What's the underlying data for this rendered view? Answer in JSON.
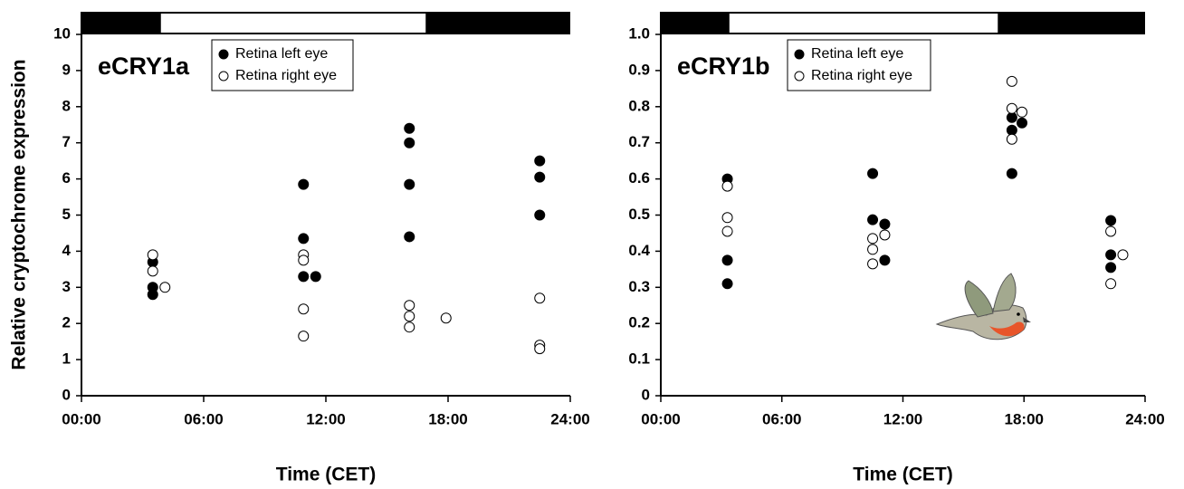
{
  "chart_data": [
    {
      "type": "scatter",
      "title": "eCRY1a",
      "xlabel": "Time (CET)",
      "ylabel": "Relative cryptochrome expression",
      "xlim": [
        0,
        24
      ],
      "xticks": [
        {
          "value": 0,
          "label": "00:00"
        },
        {
          "value": 6,
          "label": "06:00"
        },
        {
          "value": 12,
          "label": "12:00"
        },
        {
          "value": 18,
          "label": "18:00"
        },
        {
          "value": 24,
          "label": "24:00"
        }
      ],
      "ylim": [
        0,
        10
      ],
      "yticks": [
        0,
        1,
        2,
        3,
        4,
        5,
        6,
        7,
        8,
        9,
        10
      ],
      "light_phase": [
        3.9,
        16.9
      ],
      "series": [
        {
          "name": "Retina left eye",
          "color": "#000000",
          "marker": "filled",
          "x": [
            3.5,
            3.5,
            3.5,
            10.9,
            10.9,
            10.9,
            11.5,
            16.1,
            16.1,
            16.1,
            16.1,
            22.5,
            22.5,
            22.5
          ],
          "values": [
            3.7,
            3.0,
            2.8,
            5.85,
            4.35,
            3.3,
            3.3,
            7.4,
            7.0,
            5.85,
            4.4,
            6.5,
            6.05,
            5.0
          ]
        },
        {
          "name": "Retina right eye",
          "color": "#000000",
          "marker": "open",
          "x": [
            3.5,
            3.5,
            4.1,
            10.9,
            10.9,
            10.9,
            10.9,
            16.1,
            16.1,
            16.1,
            17.9,
            22.5,
            22.5,
            22.5
          ],
          "values": [
            3.9,
            3.45,
            3.0,
            3.9,
            3.75,
            2.4,
            1.65,
            2.5,
            2.2,
            1.9,
            2.15,
            2.7,
            1.4,
            1.3
          ]
        }
      ]
    },
    {
      "type": "scatter",
      "title": "eCRY1b",
      "xlabel": "Time (CET)",
      "xlim": [
        0,
        24
      ],
      "xticks": [
        {
          "value": 0,
          "label": "00:00"
        },
        {
          "value": 6,
          "label": "06:00"
        },
        {
          "value": 12,
          "label": "12:00"
        },
        {
          "value": 18,
          "label": "18:00"
        },
        {
          "value": 24,
          "label": "24:00"
        }
      ],
      "ylim": [
        0,
        1
      ],
      "yticks": [
        0,
        0.1,
        0.2,
        0.3,
        0.4,
        0.5,
        0.6,
        0.7,
        0.8,
        0.9,
        {
          "value": 1,
          "label": "1.0"
        }
      ],
      "light_phase": [
        3.4,
        16.7
      ],
      "series": [
        {
          "name": "Retina left eye",
          "color": "#000000",
          "marker": "filled",
          "x": [
            3.3,
            3.3,
            3.3,
            10.5,
            10.5,
            11.1,
            11.1,
            17.4,
            17.4,
            17.4,
            17.9,
            22.3,
            22.3,
            22.3
          ],
          "values": [
            0.6,
            0.375,
            0.31,
            0.615,
            0.487,
            0.475,
            0.375,
            0.77,
            0.735,
            0.615,
            0.755,
            0.485,
            0.39,
            0.355
          ]
        },
        {
          "name": "Retina right eye",
          "color": "#000000",
          "marker": "open",
          "x": [
            3.3,
            3.3,
            3.3,
            10.5,
            10.5,
            10.5,
            11.1,
            17.4,
            17.4,
            17.4,
            17.9,
            22.3,
            22.3,
            22.9
          ],
          "values": [
            0.58,
            0.493,
            0.455,
            0.435,
            0.405,
            0.365,
            0.445,
            0.87,
            0.795,
            0.71,
            0.785,
            0.455,
            0.31,
            0.39
          ]
        }
      ]
    }
  ]
}
